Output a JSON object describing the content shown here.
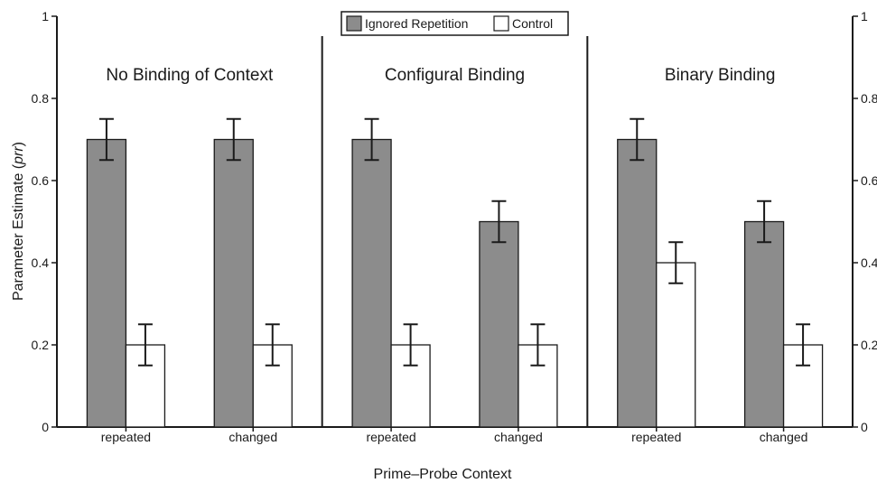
{
  "chart_data": {
    "type": "bar",
    "ylabel_prefix": "Parameter Estimate (",
    "ylabel_italic": "prr",
    "ylabel_suffix": ")",
    "xlabel": "Prime–Probe Context",
    "ylim": [
      0,
      1
    ],
    "yticks": [
      "0",
      "0.2",
      "0.4",
      "0.6",
      "0.8",
      "1"
    ],
    "legend_position": "top-center",
    "legend": [
      {
        "name": "Ignored Repetition",
        "color": "#8c8c8c"
      },
      {
        "name": "Control",
        "color": "#ffffff"
      }
    ],
    "panels": [
      {
        "title": "No Binding of Context",
        "categories": [
          "repeated",
          "changed"
        ],
        "series": [
          {
            "name": "Ignored Repetition",
            "values": [
              0.7,
              0.7
            ],
            "errors": [
              0.05,
              0.05
            ]
          },
          {
            "name": "Control",
            "values": [
              0.2,
              0.2
            ],
            "errors": [
              0.05,
              0.05
            ]
          }
        ]
      },
      {
        "title": "Configural Binding",
        "categories": [
          "repeated",
          "changed"
        ],
        "series": [
          {
            "name": "Ignored Repetition",
            "values": [
              0.7,
              0.5
            ],
            "errors": [
              0.05,
              0.05
            ]
          },
          {
            "name": "Control",
            "values": [
              0.2,
              0.2
            ],
            "errors": [
              0.05,
              0.05
            ]
          }
        ]
      },
      {
        "title": "Binary Binding",
        "categories": [
          "repeated",
          "changed"
        ],
        "series": [
          {
            "name": "Ignored Repetition",
            "values": [
              0.7,
              0.5
            ],
            "errors": [
              0.05,
              0.05
            ]
          },
          {
            "name": "Control",
            "values": [
              0.4,
              0.2
            ],
            "errors": [
              0.05,
              0.05
            ]
          }
        ]
      }
    ]
  }
}
